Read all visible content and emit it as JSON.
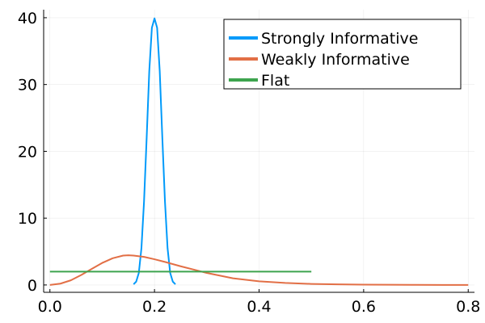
{
  "chart_data": {
    "type": "line",
    "xlim": [
      -0.012,
      0.812
    ],
    "ylim": [
      -1.1,
      41.2
    ],
    "xticks": [
      0.0,
      0.2,
      0.4,
      0.6,
      0.8
    ],
    "xtick_labels": [
      "0.0",
      "0.2",
      "0.4",
      "0.6",
      "0.8"
    ],
    "yticks": [
      0,
      10,
      20,
      30,
      40
    ],
    "ytick_labels": [
      "0",
      "10",
      "20",
      "30",
      "40"
    ],
    "grid": true,
    "legend_position": "top-right",
    "series": [
      {
        "name": "Strongly Informative",
        "color": "#009AFA",
        "x": [
          0.16,
          0.165,
          0.17,
          0.175,
          0.18,
          0.185,
          0.19,
          0.195,
          0.2,
          0.205,
          0.21,
          0.215,
          0.22,
          0.225,
          0.23,
          0.235,
          0.24
        ],
        "y": [
          0.1,
          0.5,
          1.8,
          5.5,
          12.5,
          22.0,
          32.0,
          38.5,
          39.9,
          38.5,
          32.0,
          22.0,
          12.5,
          5.5,
          1.8,
          0.5,
          0.1
        ]
      },
      {
        "name": "Weakly Informative",
        "color": "#E26F46",
        "x": [
          0.0,
          0.02,
          0.04,
          0.06,
          0.08,
          0.1,
          0.12,
          0.14,
          0.15,
          0.16,
          0.18,
          0.2,
          0.22,
          0.25,
          0.28,
          0.3,
          0.35,
          0.4,
          0.45,
          0.5,
          0.55,
          0.6,
          0.65,
          0.7,
          0.75,
          0.8
        ],
        "y": [
          0.0,
          0.2,
          0.7,
          1.5,
          2.4,
          3.3,
          4.0,
          4.4,
          4.45,
          4.4,
          4.2,
          3.85,
          3.45,
          2.8,
          2.2,
          1.8,
          1.0,
          0.55,
          0.3,
          0.16,
          0.09,
          0.05,
          0.03,
          0.02,
          0.01,
          0.0
        ]
      },
      {
        "name": "Flat",
        "color": "#3DA44E",
        "x": [
          0.0,
          0.5
        ],
        "y": [
          2.0,
          2.0
        ]
      }
    ]
  }
}
